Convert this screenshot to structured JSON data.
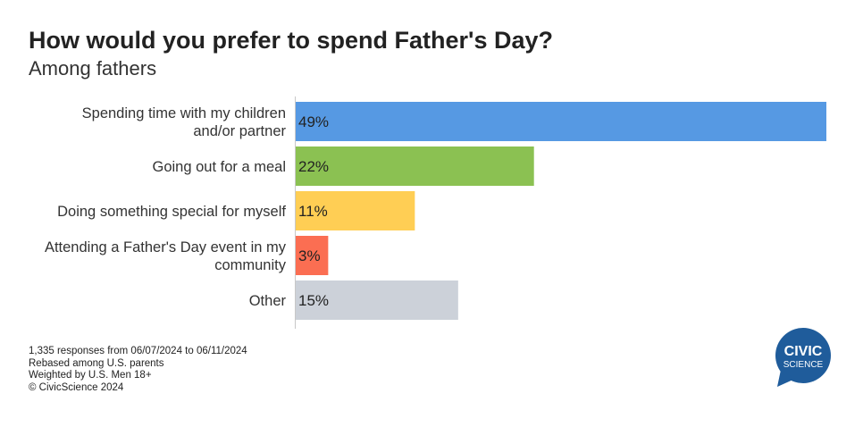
{
  "title": "How would you prefer to spend Father's Day?",
  "subtitle": "Among fathers",
  "chart_data": {
    "type": "bar",
    "orientation": "horizontal",
    "categories": [
      "Spending time with my children and/or partner",
      "Going out for a meal",
      "Doing something special for myself",
      "Attending a Father's Day event in my community",
      "Other"
    ],
    "category_lines": [
      [
        "Spending time with my children",
        "and/or partner"
      ],
      [
        "Going out for a meal"
      ],
      [
        "Doing something special for myself"
      ],
      [
        "Attending a Father's Day event in my",
        "community"
      ],
      [
        "Other"
      ]
    ],
    "values": [
      49,
      22,
      11,
      3,
      15
    ],
    "value_labels": [
      "49%",
      "22%",
      "11%",
      "3%",
      "15%"
    ],
    "colors": [
      "#5699e3",
      "#8bc152",
      "#ffce54",
      "#fb6e52",
      "#ccd1d9"
    ],
    "xlim": [
      0,
      49
    ],
    "unit": "%",
    "grid": false,
    "legend": "none"
  },
  "footer": {
    "lines": [
      "1,335 responses from 06/07/2024 to 06/11/2024",
      "Rebased among U.S. parents",
      "Weighted by U.S. Men 18+",
      "© CivicScience 2024"
    ]
  },
  "logo": {
    "line1": "CIVIC",
    "line2": "SCIENCE",
    "color": "#1f5c9b"
  }
}
